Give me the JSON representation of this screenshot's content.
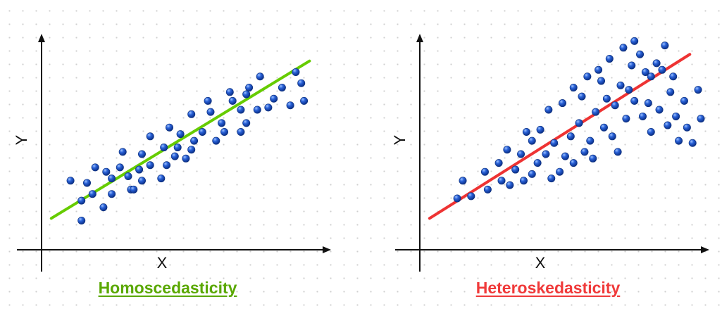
{
  "chart_data": [
    {
      "type": "scatter",
      "title": "Homoscedasticity",
      "xlabel": "X",
      "ylabel": "Y",
      "colors": {
        "points": "#1a4fc4",
        "trend": "#66cc00",
        "title": "#5aa800"
      },
      "xlim": [
        0,
        10
      ],
      "ylim": [
        0,
        10
      ],
      "trend_line": {
        "x": [
          0.2,
          9.6
        ],
        "y": [
          1.1,
          8.2
        ]
      },
      "points": [
        [
          0.9,
          2.8
        ],
        [
          1.3,
          1.9
        ],
        [
          1.3,
          1.0
        ],
        [
          1.5,
          2.7
        ],
        [
          1.7,
          2.2
        ],
        [
          1.8,
          3.4
        ],
        [
          2.1,
          1.6
        ],
        [
          2.2,
          3.2
        ],
        [
          2.4,
          2.9
        ],
        [
          2.4,
          2.2
        ],
        [
          2.7,
          3.4
        ],
        [
          2.8,
          4.1
        ],
        [
          3.0,
          3.0
        ],
        [
          3.1,
          2.4
        ],
        [
          3.2,
          2.4
        ],
        [
          3.4,
          3.3
        ],
        [
          3.5,
          2.8
        ],
        [
          3.5,
          4.0
        ],
        [
          3.8,
          3.5
        ],
        [
          3.8,
          4.8
        ],
        [
          4.2,
          2.9
        ],
        [
          4.3,
          4.3
        ],
        [
          4.4,
          3.5
        ],
        [
          4.5,
          5.2
        ],
        [
          4.7,
          3.9
        ],
        [
          4.8,
          4.3
        ],
        [
          4.9,
          4.9
        ],
        [
          5.1,
          3.8
        ],
        [
          5.4,
          4.6
        ],
        [
          5.3,
          4.2
        ],
        [
          5.3,
          5.8
        ],
        [
          5.7,
          5.0
        ],
        [
          5.9,
          6.4
        ],
        [
          6.0,
          5.9
        ],
        [
          6.2,
          4.6
        ],
        [
          6.4,
          5.4
        ],
        [
          6.5,
          5.0
        ],
        [
          6.7,
          6.8
        ],
        [
          6.8,
          6.4
        ],
        [
          7.1,
          5.0
        ],
        [
          7.1,
          6.0
        ],
        [
          7.3,
          5.4
        ],
        [
          7.3,
          6.7
        ],
        [
          7.4,
          7.0
        ],
        [
          7.7,
          6.0
        ],
        [
          7.8,
          7.5
        ],
        [
          8.1,
          6.1
        ],
        [
          8.3,
          6.5
        ],
        [
          8.6,
          7.0
        ],
        [
          8.9,
          6.2
        ],
        [
          9.1,
          7.7
        ],
        [
          9.3,
          7.2
        ],
        [
          9.4,
          6.4
        ]
      ]
    },
    {
      "type": "scatter",
      "title": "Heteroskedasticity",
      "xlabel": "X",
      "ylabel": "Y",
      "colors": {
        "points": "#1a4fc4",
        "trend": "#ee3333",
        "title": "#f03a3a"
      },
      "xlim": [
        0,
        10
      ],
      "ylim": [
        0,
        10
      ],
      "trend_line": {
        "x": [
          0.2,
          9.6
        ],
        "y": [
          1.1,
          8.5
        ]
      },
      "points": [
        [
          1.2,
          2.0
        ],
        [
          1.4,
          2.8
        ],
        [
          1.7,
          2.1
        ],
        [
          2.2,
          3.2
        ],
        [
          2.3,
          2.4
        ],
        [
          2.7,
          3.6
        ],
        [
          2.8,
          2.8
        ],
        [
          3.0,
          4.2
        ],
        [
          3.1,
          2.6
        ],
        [
          3.3,
          3.3
        ],
        [
          3.5,
          4.0
        ],
        [
          3.6,
          2.8
        ],
        [
          3.7,
          5.0
        ],
        [
          3.9,
          4.6
        ],
        [
          3.9,
          3.1
        ],
        [
          4.1,
          3.6
        ],
        [
          4.2,
          5.1
        ],
        [
          4.4,
          4.0
        ],
        [
          4.5,
          6.0
        ],
        [
          4.6,
          2.9
        ],
        [
          4.7,
          4.5
        ],
        [
          4.9,
          3.2
        ],
        [
          5.0,
          6.3
        ],
        [
          5.1,
          3.9
        ],
        [
          5.3,
          4.8
        ],
        [
          5.4,
          7.0
        ],
        [
          5.4,
          3.6
        ],
        [
          5.6,
          5.4
        ],
        [
          5.7,
          6.6
        ],
        [
          5.8,
          4.1
        ],
        [
          5.9,
          7.5
        ],
        [
          6.0,
          4.6
        ],
        [
          6.1,
          3.8
        ],
        [
          6.2,
          5.9
        ],
        [
          6.3,
          7.8
        ],
        [
          6.4,
          7.3
        ],
        [
          6.5,
          5.2
        ],
        [
          6.6,
          6.5
        ],
        [
          6.7,
          8.3
        ],
        [
          6.8,
          4.8
        ],
        [
          6.9,
          6.2
        ],
        [
          7.0,
          4.1
        ],
        [
          7.1,
          7.1
        ],
        [
          7.2,
          8.8
        ],
        [
          7.3,
          5.6
        ],
        [
          7.4,
          6.9
        ],
        [
          7.5,
          8.0
        ],
        [
          7.6,
          9.1
        ],
        [
          7.6,
          6.4
        ],
        [
          7.8,
          8.5
        ],
        [
          7.9,
          5.7
        ],
        [
          8.0,
          7.7
        ],
        [
          8.1,
          6.3
        ],
        [
          8.2,
          5.0
        ],
        [
          8.2,
          7.5
        ],
        [
          8.4,
          8.1
        ],
        [
          8.5,
          6.0
        ],
        [
          8.6,
          7.8
        ],
        [
          8.7,
          8.9
        ],
        [
          8.8,
          5.3
        ],
        [
          8.9,
          6.8
        ],
        [
          9.0,
          7.5
        ],
        [
          9.1,
          5.7
        ],
        [
          9.2,
          4.6
        ],
        [
          9.4,
          6.4
        ],
        [
          9.5,
          5.2
        ],
        [
          9.7,
          4.5
        ],
        [
          9.9,
          6.9
        ],
        [
          10.0,
          5.6
        ]
      ]
    }
  ]
}
